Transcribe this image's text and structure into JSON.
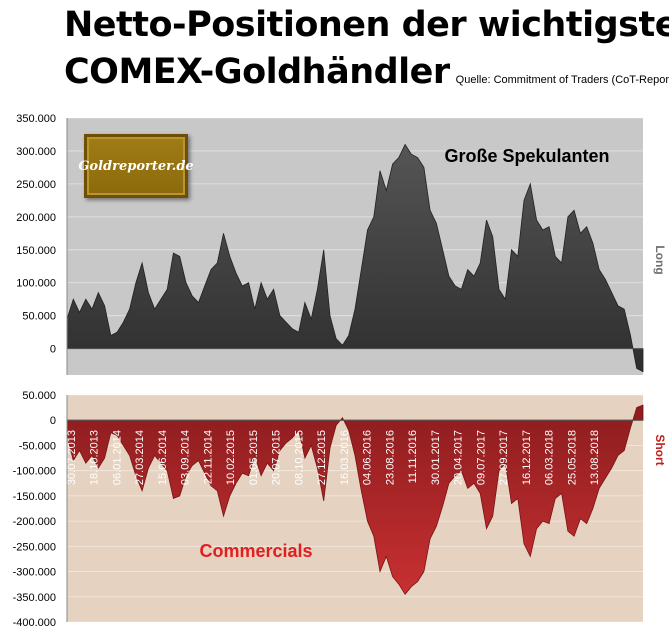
{
  "title_line1": "Netto-Positionen der wichtigsten",
  "title_line2": "COMEX-Goldhändler",
  "source": "Quelle: Commitment of Traders (CoT-Report)",
  "logo_text": "Goldreporter.de",
  "chart_data": [
    {
      "type": "area",
      "title": "Große Spekulanten",
      "ylabel": "Long",
      "ylim": [
        -40000,
        350000
      ],
      "yticks": [
        "350.000",
        "300.000",
        "250.000",
        "200.000",
        "150.000",
        "100.000",
        "50.000",
        "0"
      ],
      "color": "#3c3c3c",
      "series": [
        {
          "name": "Große Spekulanten",
          "values": [
            45000,
            75000,
            55000,
            75000,
            60000,
            85000,
            65000,
            20000,
            25000,
            40000,
            60000,
            100000,
            130000,
            85000,
            60000,
            75000,
            90000,
            145000,
            140000,
            100000,
            80000,
            70000,
            95000,
            120000,
            130000,
            175000,
            140000,
            115000,
            95000,
            100000,
            60000,
            100000,
            75000,
            90000,
            50000,
            40000,
            30000,
            25000,
            70000,
            45000,
            90000,
            150000,
            50000,
            15000,
            5000,
            20000,
            60000,
            120000,
            180000,
            200000,
            270000,
            240000,
            280000,
            290000,
            310000,
            295000,
            290000,
            275000,
            210000,
            190000,
            150000,
            110000,
            95000,
            90000,
            120000,
            110000,
            130000,
            195000,
            170000,
            90000,
            75000,
            150000,
            140000,
            225000,
            250000,
            195000,
            180000,
            185000,
            140000,
            130000,
            200000,
            210000,
            175000,
            185000,
            160000,
            120000,
            105000,
            85000,
            65000,
            60000,
            20000,
            -30000,
            -35000
          ]
        }
      ]
    },
    {
      "type": "area",
      "title": "Commercials",
      "ylabel": "Short",
      "ylim": [
        -400000,
        50000
      ],
      "yticks": [
        "50.000",
        "0",
        "-50.000",
        "-100.000",
        "-150.000",
        "-200.000",
        "-250.000",
        "-300.000",
        "-350.000",
        "-400.000"
      ],
      "x_tick_labels": [
        "30.07.2013",
        "18.10.2013",
        "06.01.2014",
        "27.03.2014",
        "15.06.2014",
        "03.09.2014",
        "22.11.2014",
        "10.02.2015",
        "01.05.2015",
        "20.07.2015",
        "08.10.2015",
        "27.12.2015",
        "16.03.2016",
        "04.06.2016",
        "23.08.2016",
        "11.11.2016",
        "30.01.2017",
        "20.04.2017",
        "09.07.2017",
        "27.09.2017",
        "16.12.2017",
        "06.03.2018",
        "25.05.2018",
        "13.08.2018"
      ],
      "color": "#b4282a",
      "series": [
        {
          "name": "Commercials",
          "values": [
            -30000,
            -80000,
            -60000,
            -85000,
            -70000,
            -95000,
            -75000,
            -25000,
            -30000,
            -50000,
            -70000,
            -110000,
            -140000,
            -95000,
            -70000,
            -85000,
            -100000,
            -155000,
            -150000,
            -110000,
            -90000,
            -80000,
            -105000,
            -130000,
            -140000,
            -190000,
            -150000,
            -125000,
            -105000,
            -110000,
            -70000,
            -110000,
            -85000,
            -100000,
            -60000,
            -45000,
            -35000,
            -20000,
            -75000,
            -50000,
            -95000,
            -160000,
            -55000,
            -10000,
            5000,
            -20000,
            -70000,
            -140000,
            -200000,
            -230000,
            -300000,
            -270000,
            -310000,
            -325000,
            -345000,
            -330000,
            -320000,
            -300000,
            -235000,
            -210000,
            -170000,
            -125000,
            -110000,
            -100000,
            -135000,
            -125000,
            -145000,
            -215000,
            -190000,
            -100000,
            -85000,
            -165000,
            -155000,
            -245000,
            -270000,
            -215000,
            -200000,
            -205000,
            -155000,
            -145000,
            -220000,
            -230000,
            -195000,
            -205000,
            -175000,
            -135000,
            -115000,
            -95000,
            -70000,
            -60000,
            -15000,
            25000,
            30000
          ]
        }
      ],
      "annotation": "Commercials"
    }
  ]
}
